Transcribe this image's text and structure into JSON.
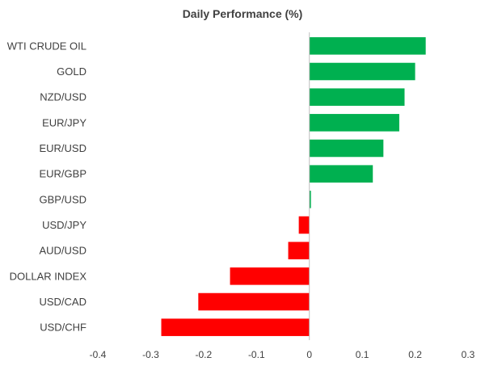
{
  "chart_data": {
    "type": "bar",
    "orientation": "horizontal",
    "title": "Daily Performance (%)",
    "xlabel": "",
    "ylabel": "",
    "xlim": [
      -0.4,
      0.3
    ],
    "xticks": [
      "-0.4",
      "-0.3",
      "-0.2",
      "-0.1",
      "0",
      "0.1",
      "0.2",
      "0.3"
    ],
    "grid": false,
    "categories": [
      "WTI CRUDE OIL",
      "GOLD",
      "NZD/USD",
      "EUR/JPY",
      "EUR/USD",
      "EUR/GBP",
      "GBP/USD",
      "USD/JPY",
      "AUD/USD",
      "DOLLAR INDEX",
      "USD/CAD",
      "USD/CHF"
    ],
    "values": [
      0.22,
      0.2,
      0.18,
      0.17,
      0.14,
      0.12,
      0.003,
      -0.02,
      -0.04,
      -0.15,
      -0.21,
      -0.28
    ],
    "colors": {
      "positive": "#00b050",
      "negative": "#ff0000",
      "text": "#404040",
      "axis": "#bfbfbf"
    }
  }
}
